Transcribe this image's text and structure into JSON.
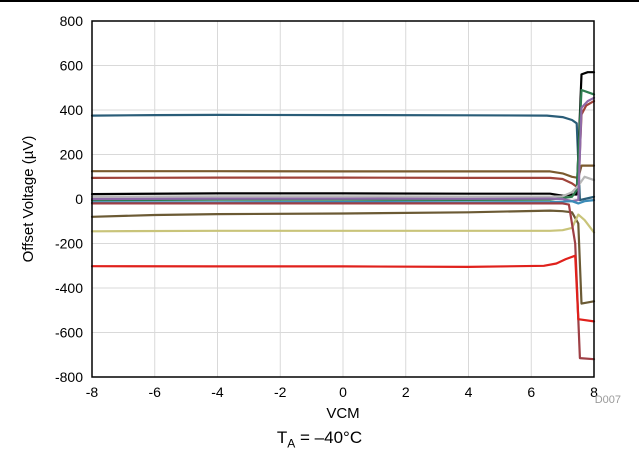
{
  "caption": {
    "symbol": "T",
    "subscript": "A",
    "text": " = –40°C"
  },
  "figure_code": "D007",
  "colors": {
    "grid": "#d9d9d9",
    "frame": "#000000",
    "code": "#9a9a9a"
  },
  "chart_data": {
    "type": "line",
    "xlabel": "VCM",
    "ylabel": "Offset Voltage (µV)",
    "xlim": [
      -8,
      8
    ],
    "ylim": [
      -800,
      800
    ],
    "x_ticks": [
      -8,
      -6,
      -4,
      -2,
      0,
      2,
      4,
      6,
      8
    ],
    "y_ticks": [
      -800,
      -600,
      -400,
      -200,
      0,
      200,
      400,
      600,
      800
    ],
    "x_tick_labels": [
      "-8",
      "-6",
      "-4",
      "-2",
      "0",
      "2",
      "4",
      "6",
      "8"
    ],
    "y_tick_labels": [
      "-800",
      "-600",
      "-400",
      "-200",
      "0",
      "200",
      "400",
      "600",
      "800"
    ],
    "grid": true,
    "series": [
      {
        "color": "#2a5d78",
        "points": [
          [
            -8,
            375
          ],
          [
            -6,
            377
          ],
          [
            -4,
            378
          ],
          [
            0,
            377
          ],
          [
            4,
            376
          ],
          [
            6.5,
            375
          ],
          [
            7.0,
            368
          ],
          [
            7.3,
            355
          ],
          [
            7.45,
            340
          ],
          [
            7.55,
            -5
          ],
          [
            7.7,
            0
          ],
          [
            8,
            10
          ]
        ]
      },
      {
        "color": "#7a5a2e",
        "points": [
          [
            -8,
            125
          ],
          [
            -4,
            125
          ],
          [
            0,
            124
          ],
          [
            4,
            124
          ],
          [
            6.6,
            124
          ],
          [
            7.0,
            115
          ],
          [
            7.3,
            100
          ],
          [
            7.5,
            95
          ],
          [
            7.6,
            150
          ],
          [
            8,
            150
          ]
        ]
      },
      {
        "color": "#a0433a",
        "points": [
          [
            -8,
            95
          ],
          [
            -4,
            96
          ],
          [
            0,
            96
          ],
          [
            4,
            95
          ],
          [
            6.6,
            95
          ],
          [
            7.0,
            90
          ],
          [
            7.3,
            70
          ],
          [
            7.5,
            50
          ],
          [
            7.6,
            380
          ],
          [
            7.75,
            420
          ],
          [
            8,
            440
          ]
        ]
      },
      {
        "color": "#000000",
        "points": [
          [
            -8,
            22
          ],
          [
            -4,
            25
          ],
          [
            0,
            25
          ],
          [
            4,
            24
          ],
          [
            6.6,
            24
          ],
          [
            7.0,
            15
          ],
          [
            7.3,
            20
          ],
          [
            7.45,
            20
          ],
          [
            7.6,
            560
          ],
          [
            7.8,
            570
          ],
          [
            8,
            570
          ]
        ]
      },
      {
        "color": "#2e7d4f",
        "points": [
          [
            -8,
            -5
          ],
          [
            -4,
            -3
          ],
          [
            0,
            -3
          ],
          [
            4,
            -4
          ],
          [
            6.6,
            -3
          ],
          [
            7.0,
            5
          ],
          [
            7.3,
            10
          ],
          [
            7.45,
            40
          ],
          [
            7.6,
            490
          ],
          [
            7.8,
            480
          ],
          [
            8,
            470
          ]
        ]
      },
      {
        "color": "#b7b7b7",
        "points": [
          [
            -8,
            10
          ],
          [
            -4,
            12
          ],
          [
            0,
            12
          ],
          [
            4,
            11
          ],
          [
            6.6,
            11
          ],
          [
            7.0,
            12
          ],
          [
            7.3,
            30
          ],
          [
            7.5,
            60
          ],
          [
            7.7,
            100
          ],
          [
            8,
            85
          ]
        ]
      },
      {
        "color": "#8f6aa8",
        "points": [
          [
            -8,
            0
          ],
          [
            -4,
            2
          ],
          [
            0,
            2
          ],
          [
            4,
            1
          ],
          [
            6.6,
            2
          ],
          [
            7.0,
            0
          ],
          [
            7.3,
            -10
          ],
          [
            7.5,
            -5
          ],
          [
            7.6,
            410
          ],
          [
            7.8,
            440
          ],
          [
            8,
            455
          ]
        ]
      },
      {
        "color": "#3b8bb7",
        "points": [
          [
            -8,
            -15
          ],
          [
            -4,
            -15
          ],
          [
            0,
            -14
          ],
          [
            4,
            -15
          ],
          [
            6.6,
            -14
          ],
          [
            7.0,
            -12
          ],
          [
            7.3,
            -10
          ],
          [
            7.5,
            -20
          ],
          [
            7.7,
            -10
          ],
          [
            8,
            -5
          ]
        ]
      },
      {
        "color": "#6b5a34",
        "points": [
          [
            -8,
            -80
          ],
          [
            -6,
            -72
          ],
          [
            -4,
            -68
          ],
          [
            0,
            -65
          ],
          [
            4,
            -60
          ],
          [
            6.6,
            -52
          ],
          [
            7.0,
            -55
          ],
          [
            7.3,
            -60
          ],
          [
            7.5,
            -110
          ],
          [
            7.6,
            -470
          ],
          [
            8,
            -460
          ]
        ]
      },
      {
        "color": "#c9c47a",
        "points": [
          [
            -8,
            -145
          ],
          [
            -4,
            -143
          ],
          [
            0,
            -143
          ],
          [
            4,
            -143
          ],
          [
            6.6,
            -143
          ],
          [
            7.0,
            -140
          ],
          [
            7.3,
            -130
          ],
          [
            7.5,
            -70
          ],
          [
            7.7,
            -95
          ],
          [
            8,
            -150
          ]
        ]
      },
      {
        "color": "#9e3f45",
        "points": [
          [
            -8,
            -20
          ],
          [
            -4,
            -20
          ],
          [
            0,
            -20
          ],
          [
            4,
            -20
          ],
          [
            6.6,
            -20
          ],
          [
            7.0,
            -20
          ],
          [
            7.2,
            -25
          ],
          [
            7.4,
            -200
          ],
          [
            7.55,
            -715
          ],
          [
            8,
            -720
          ]
        ]
      },
      {
        "color": "#e0211c",
        "points": [
          [
            -8,
            -302
          ],
          [
            -4,
            -303
          ],
          [
            0,
            -303
          ],
          [
            4,
            -305
          ],
          [
            6.4,
            -300
          ],
          [
            6.8,
            -290
          ],
          [
            7.1,
            -270
          ],
          [
            7.4,
            -255
          ],
          [
            7.5,
            -540
          ],
          [
            8,
            -550
          ]
        ]
      }
    ]
  }
}
